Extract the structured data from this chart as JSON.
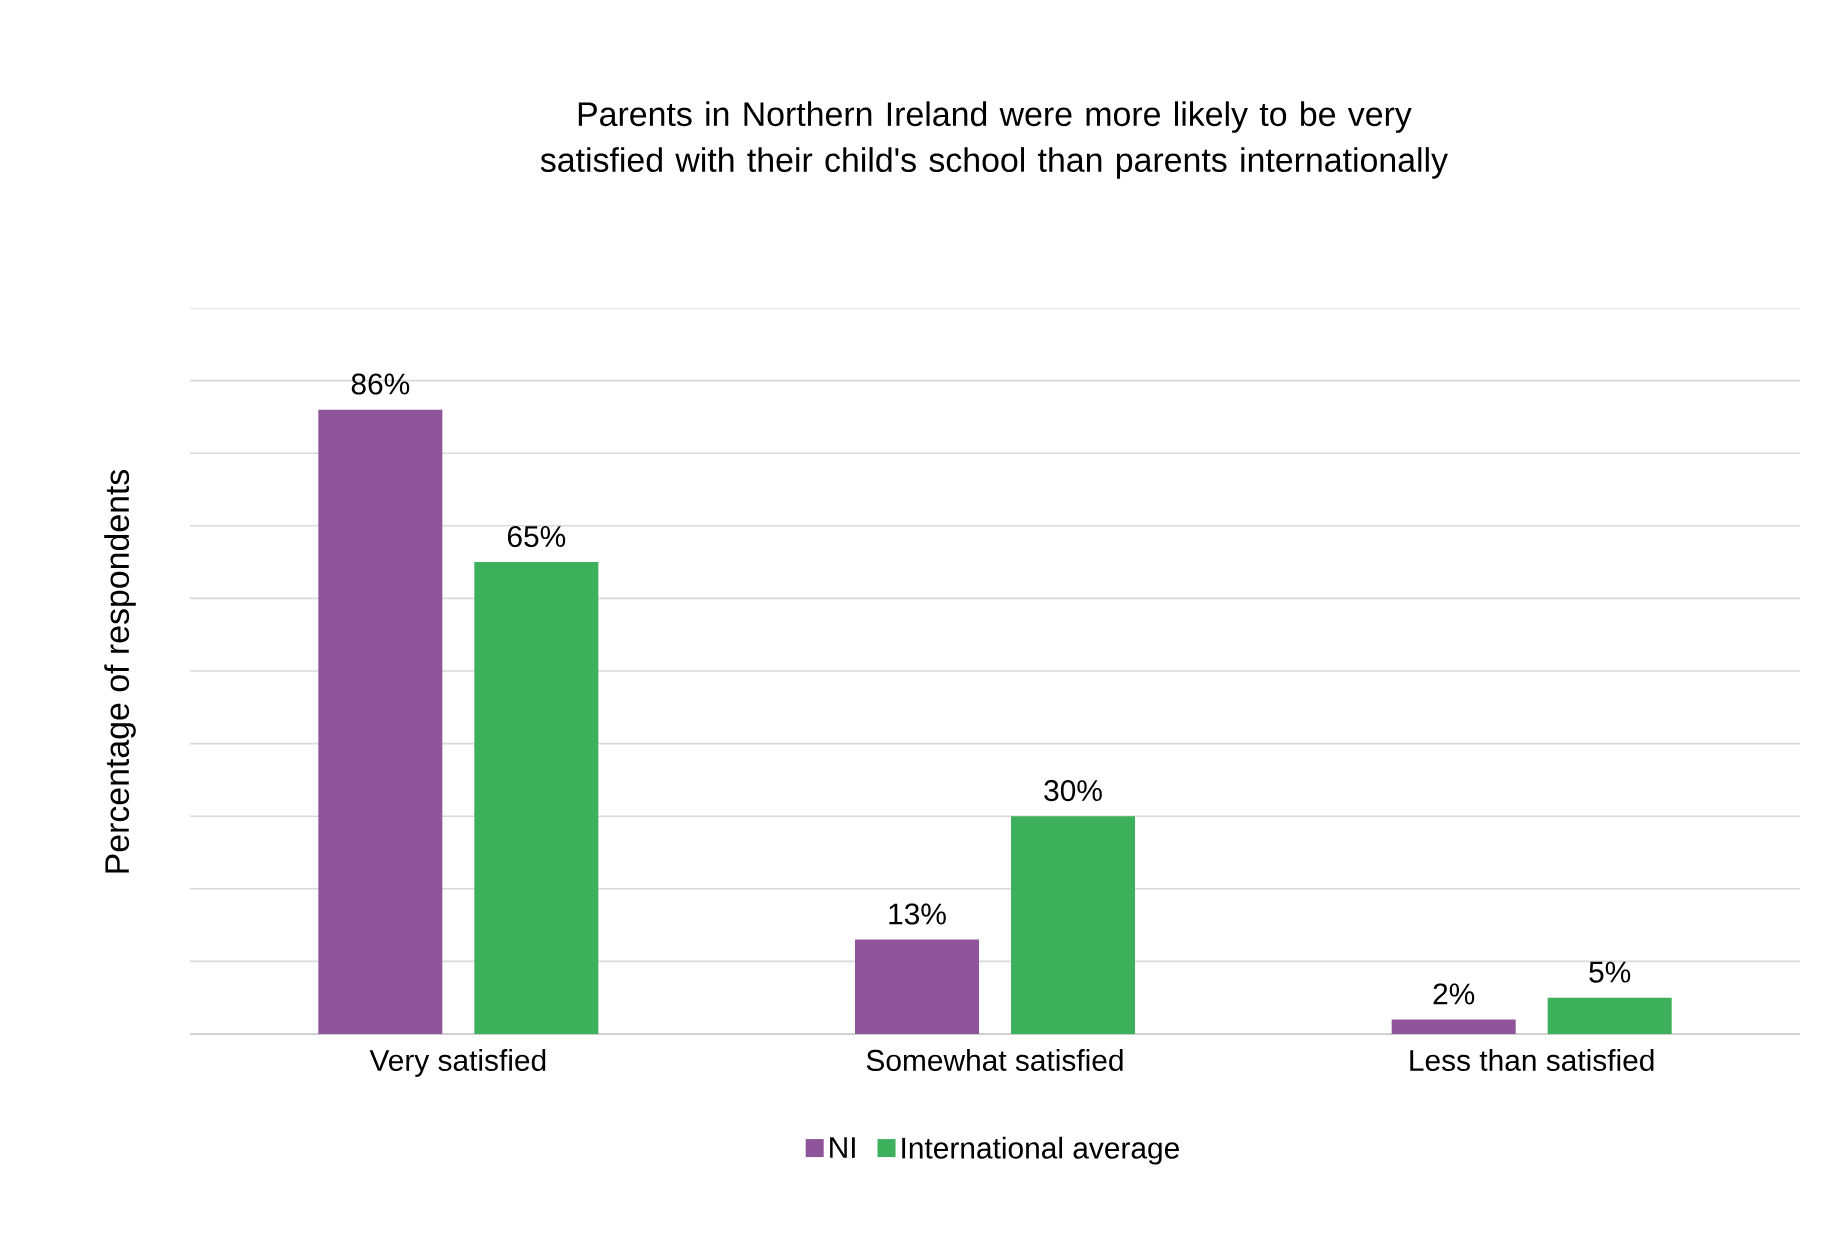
{
  "chart_data": {
    "type": "bar",
    "title": "Parents in Northern Ireland were more likely to be very satisfied with their child's school than parents internationally",
    "ylabel": "Percentage of respondents",
    "categories": [
      "Very satisfied",
      "Somewhat satisfied",
      "Less than satisfied"
    ],
    "series": [
      {
        "name": "NI",
        "color": "#8f559b",
        "values": [
          86,
          13,
          2
        ],
        "value_labels": [
          "86%",
          "13%",
          "2%"
        ]
      },
      {
        "name": "International average",
        "color": "#3db05c",
        "values": [
          65,
          30,
          5
        ],
        "value_labels": [
          "65%",
          "30%",
          "5%"
        ]
      }
    ],
    "ylim": [
      0,
      100
    ],
    "yticks": [
      {
        "value": 0,
        "label": null
      },
      {
        "value": 10,
        "label": null
      },
      {
        "value": 20,
        "label": null
      },
      {
        "value": 30,
        "label": null
      },
      {
        "value": 40,
        "label": null
      },
      {
        "value": 50,
        "label": null
      },
      {
        "value": 60,
        "label": null
      },
      {
        "value": 70,
        "label": null
      },
      {
        "value": 80,
        "label": null
      },
      {
        "value": 90,
        "label": null
      },
      {
        "value": 100,
        "label": null
      }
    ],
    "tick_labels": "x",
    "grid": "y",
    "legend": "bottom"
  }
}
